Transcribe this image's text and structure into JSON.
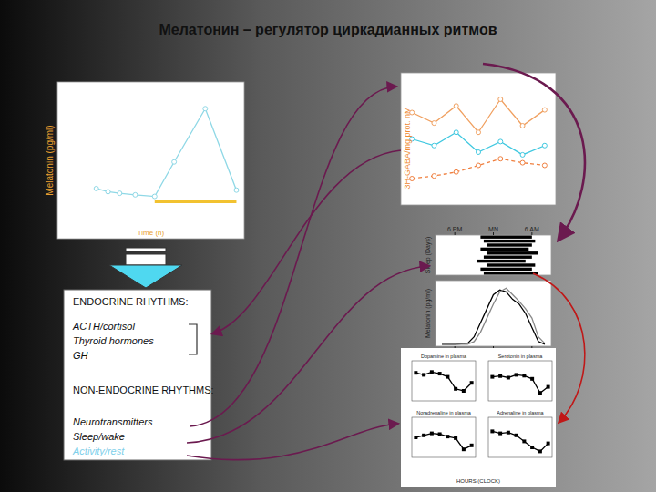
{
  "title": "Мелатонин – регулятор циркадианных ритмов",
  "endocrine_box": {
    "heading": "ENDOCRINE RHYTHMS:",
    "endocrine": [
      "ACTH/cortisol",
      "Thyroid hormones",
      "GH"
    ],
    "heading2": "NON-ENDOCRINE RHYTHMS:",
    "non_endocrine": [
      "Neurotransmitters",
      "Sleep/wake",
      "Activity/rest"
    ]
  },
  "chart_data": [
    {
      "type": "line",
      "y_label": "Melatonin (pg/ml)",
      "x_label": "Time (h)",
      "x": [
        5,
        6.5,
        8,
        10,
        12.5,
        15,
        19,
        23
      ],
      "xlim": [
        0,
        24
      ],
      "ylim": [
        0,
        100
      ],
      "tick_labels": false,
      "dark_period": [
        12.5,
        23
      ],
      "series": [
        {
          "color": "#8fd8e6",
          "marker": "circle",
          "values": [
            32,
            30,
            29,
            28,
            27,
            49,
            83,
            31
          ]
        }
      ]
    },
    {
      "type": "line",
      "y_label": "3H-GABA/mg prot. nM",
      "x": [
        0,
        4,
        8,
        12,
        16,
        20,
        24
      ],
      "xlim": [
        -2,
        26
      ],
      "ylim": [
        0,
        100
      ],
      "tick_labels": false,
      "series": [
        {
          "color": "#f0a060",
          "marker": "circle",
          "values": [
            70,
            62,
            75,
            55,
            80,
            60,
            72
          ]
        },
        {
          "color": "#40c8e0",
          "marker": "circle",
          "values": [
            50,
            45,
            55,
            40,
            48,
            38,
            45
          ]
        },
        {
          "color": "#f08040",
          "marker": "circle",
          "line_style": "dashed",
          "values": [
            20,
            22,
            25,
            30,
            35,
            32,
            30
          ]
        }
      ]
    },
    {
      "type": "raster",
      "y_label": "Sleep (Days)",
      "xlim": [
        15,
        33
      ],
      "xticks": [
        {
          "value": 18,
          "label": "6 PM"
        },
        {
          "value": 24,
          "label": "MN"
        },
        {
          "value": 30,
          "label": "6 AM"
        }
      ],
      "tick_labels": "x",
      "color": "#000000",
      "rows": [
        [
          22,
          30
        ],
        [
          22.5,
          30.5
        ],
        [
          23,
          30
        ],
        [
          22,
          29.5
        ],
        [
          23,
          31
        ],
        [
          22.5,
          30
        ],
        [
          21.5,
          29
        ],
        [
          23,
          30.5
        ],
        [
          22,
          30
        ],
        [
          22.5,
          31
        ]
      ]
    },
    {
      "type": "line",
      "y_label": "Melatonin (pg/ml)",
      "x": [
        16,
        18,
        20,
        21,
        22,
        23,
        24,
        25,
        26,
        27,
        28,
        29,
        30,
        31,
        32
      ],
      "xlim": [
        15,
        33
      ],
      "ylim": [
        0,
        70
      ],
      "xticks": [
        {
          "value": 18,
          "label": "6 PM"
        },
        {
          "value": 24,
          "label": "MN"
        },
        {
          "value": 30,
          "label": "6 AM"
        }
      ],
      "tick_labels": "x",
      "series": [
        {
          "color": "#000000",
          "values": [
            2,
            2,
            3,
            10,
            25,
            40,
            55,
            60,
            58,
            50,
            45,
            35,
            20,
            5,
            2
          ]
        },
        {
          "color": "#888888",
          "values": [
            2,
            2,
            2,
            5,
            15,
            30,
            45,
            58,
            62,
            55,
            48,
            40,
            30,
            10,
            3
          ]
        }
      ]
    },
    {
      "type": "line",
      "x_label": "HOURS (CLOCK)",
      "x": [
        0,
        3,
        6,
        9,
        12,
        15,
        18,
        21
      ],
      "xlim": [
        -1.5,
        22.5
      ],
      "ylim": [
        0,
        100
      ],
      "tick_labels": false,
      "panels": [
        {
          "title": "Dopamine in plasma",
          "color": "#000000",
          "marker": "square",
          "values": [
            70,
            65,
            72,
            68,
            60,
            30,
            25,
            45
          ]
        },
        {
          "title": "Serotonin in plasma",
          "color": "#000000",
          "marker": "square",
          "values": [
            60,
            62,
            58,
            65,
            63,
            55,
            20,
            35
          ]
        },
        {
          "title": "Noradrenaline in plasma",
          "color": "#000000",
          "marker": "square",
          "values": [
            50,
            55,
            60,
            58,
            52,
            48,
            20,
            30
          ]
        },
        {
          "title": "Adrenaline in plasma",
          "color": "#000000",
          "marker": "square",
          "values": [
            65,
            60,
            62,
            55,
            40,
            25,
            15,
            35
          ]
        }
      ]
    }
  ]
}
